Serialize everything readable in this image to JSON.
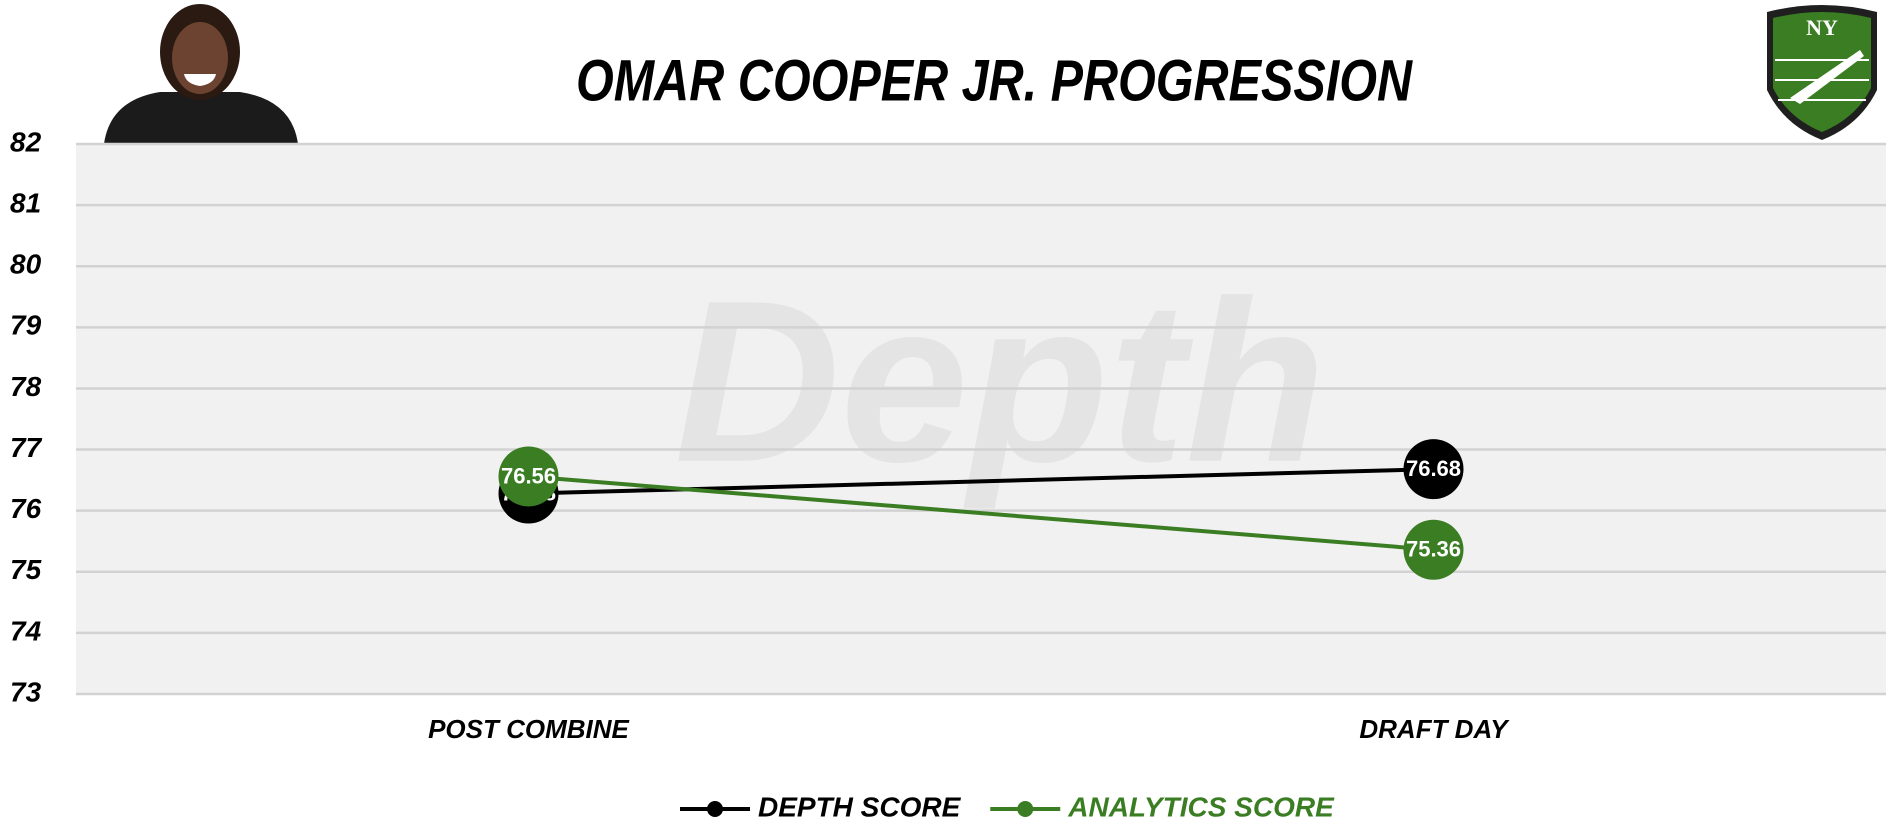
{
  "chart_data": {
    "type": "line",
    "title": "OMAR COOPER JR. PROGRESSION",
    "watermark": "Depth",
    "logo_text": "NY",
    "categories": [
      "POST COMBINE",
      "DRAFT DAY"
    ],
    "series": [
      {
        "name": "DEPTH SCORE",
        "color": "#000000",
        "values": [
          76.28,
          76.68
        ]
      },
      {
        "name": "ANALYTICS SCORE",
        "color": "#3a7d23",
        "values": [
          76.56,
          75.36
        ]
      }
    ],
    "ylim": [
      73,
      82
    ],
    "yticks": [
      73,
      74,
      75,
      76,
      77,
      78,
      79,
      80,
      81,
      82
    ],
    "grid": true,
    "legend": "bottom"
  }
}
